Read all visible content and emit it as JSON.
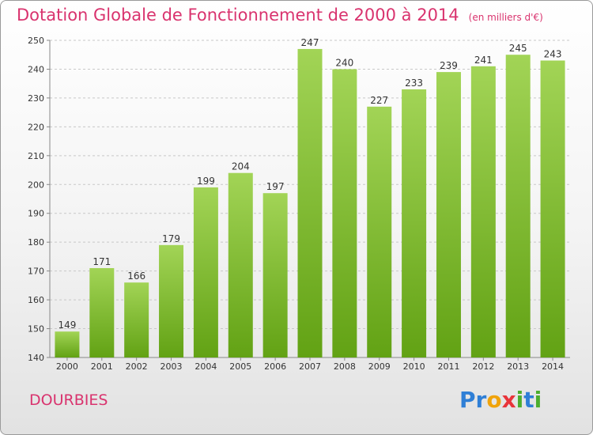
{
  "chart_data": {
    "type": "bar",
    "title": "Dotation Globale de Fonctionnement de 2000 à 2014",
    "subtitle": "(en milliers d'€)",
    "categories": [
      "2000",
      "2001",
      "2002",
      "2003",
      "2004",
      "2005",
      "2006",
      "2007",
      "2008",
      "2009",
      "2010",
      "2011",
      "2012",
      "2013",
      "2014"
    ],
    "values": [
      149,
      171,
      166,
      179,
      199,
      204,
      197,
      247,
      240,
      227,
      233,
      239,
      241,
      245,
      243
    ],
    "ylim": [
      140,
      250
    ],
    "yticks": [
      140,
      150,
      160,
      170,
      180,
      190,
      200,
      210,
      220,
      230,
      240,
      250
    ],
    "grid": true,
    "bar_color": "#7bc12e"
  },
  "commune": "DOURBIES",
  "logo": {
    "letters": [
      "P",
      "r",
      "o",
      "x",
      "i",
      "t",
      "i"
    ],
    "colors": [
      "#2f7fd6",
      "#2f7fd6",
      "#f0a30a",
      "#e8343a",
      "#4cae2e",
      "#2f7fd6",
      "#4cae2e"
    ]
  }
}
